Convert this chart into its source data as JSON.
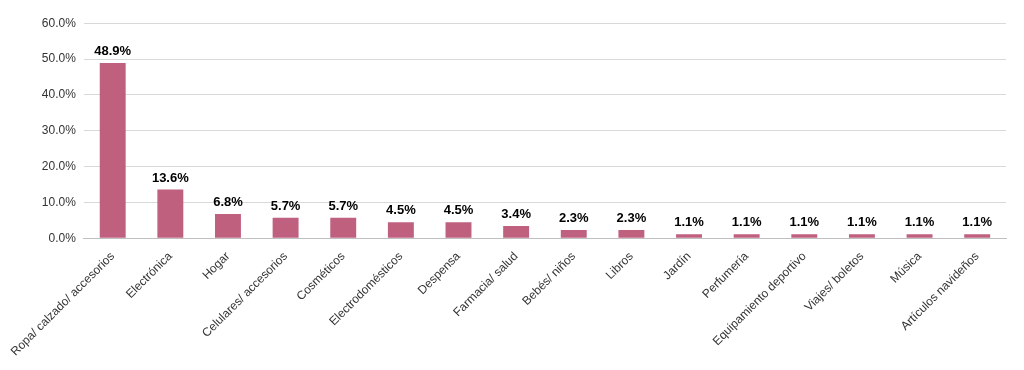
{
  "chart_data": {
    "type": "bar",
    "categories": [
      "Ropa/ calzado/ accesorios",
      "Electrónica",
      "Hogar",
      "Celulares/ accesorios",
      "Cosméticos",
      "Electrodomésticos",
      "Despensa",
      "Farmacia/ salud",
      "Bebés/ niños",
      "Libros",
      "Jardín",
      "Perfumería",
      "Equipamiento deportivo",
      "Viajes/ boletos",
      "Música",
      "Artículos navideños"
    ],
    "values": [
      48.9,
      13.6,
      6.8,
      5.7,
      5.7,
      4.5,
      4.5,
      3.4,
      2.3,
      2.3,
      1.1,
      1.1,
      1.1,
      1.1,
      1.1,
      1.1
    ],
    "value_labels": [
      "48.9%",
      "13.6%",
      "6.8%",
      "5.7%",
      "5.7%",
      "4.5%",
      "4.5%",
      "3.4%",
      "2.3%",
      "2.3%",
      "1.1%",
      "1.1%",
      "1.1%",
      "1.1%",
      "1.1%",
      "1.1%"
    ],
    "color": "#c0607f",
    "ylim": [
      0,
      60
    ],
    "yticks": [
      {
        "value": 0,
        "label": "0.0%"
      },
      {
        "value": 10,
        "label": "10.0%"
      },
      {
        "value": 20,
        "label": "20.0%"
      },
      {
        "value": 30,
        "label": "30.0%"
      },
      {
        "value": 40,
        "label": "40.0%"
      },
      {
        "value": 50,
        "label": "50.0%"
      },
      {
        "value": 60,
        "label": "60.0%"
      }
    ],
    "grid": "y",
    "legend": false
  }
}
